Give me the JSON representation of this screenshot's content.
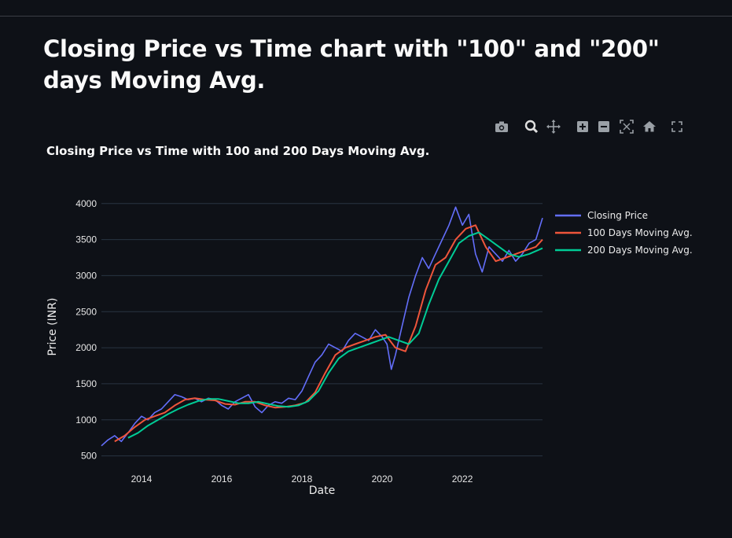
{
  "page": {
    "title": "Closing Price vs Time chart with \"100\" and \"200\" days Moving Avg."
  },
  "modebar": {
    "buttons": [
      "camera-icon",
      "zoom-icon",
      "pan-icon",
      "zoom-in-icon",
      "zoom-out-icon",
      "autoscale-icon",
      "home-icon",
      "fullscreen-icon"
    ]
  },
  "colors": {
    "background": "#0e1117",
    "closing": "#636efa",
    "ma100": "#ef553b",
    "ma200": "#00cc96",
    "grid": "#283442"
  },
  "chart_data": {
    "type": "line",
    "title": "Closing Price vs Time with 100 and 200 Days Moving Avg.",
    "xlabel": "Date",
    "ylabel": "Price (INR)",
    "xlim": [
      "2013-01-01",
      "2024-01-01"
    ],
    "ylim": [
      430,
      4150
    ],
    "x_ticks": [
      "2014",
      "2016",
      "2018",
      "2020",
      "2022"
    ],
    "y_ticks": [
      500,
      1000,
      1500,
      2000,
      2500,
      3000,
      3500,
      4000
    ],
    "grid": true,
    "legend_position": "right",
    "series": [
      {
        "name": "Closing Price",
        "x": [
          "2013-01-01",
          "2013-03-01",
          "2013-05-01",
          "2013-07-01",
          "2013-09-01",
          "2013-11-01",
          "2014-01-01",
          "2014-03-01",
          "2014-05-01",
          "2014-07-01",
          "2014-09-01",
          "2014-11-01",
          "2015-01-01",
          "2015-03-01",
          "2015-05-01",
          "2015-07-01",
          "2015-09-01",
          "2015-11-01",
          "2016-01-01",
          "2016-03-01",
          "2016-05-01",
          "2016-07-01",
          "2016-09-01",
          "2016-11-01",
          "2017-01-01",
          "2017-03-01",
          "2017-05-01",
          "2017-07-01",
          "2017-09-01",
          "2017-11-01",
          "2018-01-01",
          "2018-03-01",
          "2018-05-01",
          "2018-07-01",
          "2018-09-01",
          "2018-11-01",
          "2019-01-01",
          "2019-03-01",
          "2019-05-01",
          "2019-07-01",
          "2019-09-01",
          "2019-11-01",
          "2020-01-01",
          "2020-02-15",
          "2020-03-25",
          "2020-05-01",
          "2020-07-01",
          "2020-09-01",
          "2020-11-01",
          "2021-01-01",
          "2021-03-01",
          "2021-05-01",
          "2021-07-01",
          "2021-09-01",
          "2021-11-01",
          "2022-01-01",
          "2022-03-01",
          "2022-05-01",
          "2022-07-01",
          "2022-09-01",
          "2022-11-01",
          "2023-01-01",
          "2023-03-01",
          "2023-05-01",
          "2023-07-01",
          "2023-09-01",
          "2023-11-01",
          "2024-01-01"
        ],
        "values": [
          640,
          720,
          780,
          700,
          820,
          950,
          1050,
          1000,
          1100,
          1150,
          1250,
          1350,
          1320,
          1280,
          1300,
          1250,
          1300,
          1280,
          1200,
          1150,
          1250,
          1300,
          1350,
          1180,
          1100,
          1200,
          1250,
          1230,
          1300,
          1280,
          1400,
          1600,
          1800,
          1900,
          2050,
          2000,
          1950,
          2100,
          2200,
          2150,
          2100,
          2250,
          2150,
          2050,
          1700,
          1900,
          2300,
          2700,
          3000,
          3250,
          3100,
          3300,
          3500,
          3700,
          3950,
          3700,
          3850,
          3300,
          3050,
          3400,
          3300,
          3200,
          3350,
          3200,
          3300,
          3450,
          3500,
          3800
        ]
      },
      {
        "name": "100 Days Moving Avg.",
        "x": [
          "2013-05-01",
          "2013-08-01",
          "2013-11-01",
          "2014-02-01",
          "2014-05-01",
          "2014-08-01",
          "2014-11-01",
          "2015-02-01",
          "2015-05-01",
          "2015-08-01",
          "2015-11-01",
          "2016-02-01",
          "2016-05-01",
          "2016-08-01",
          "2016-11-01",
          "2017-02-01",
          "2017-05-01",
          "2017-08-01",
          "2017-11-01",
          "2018-02-01",
          "2018-05-01",
          "2018-08-01",
          "2018-11-01",
          "2019-02-01",
          "2019-05-01",
          "2019-08-01",
          "2019-11-01",
          "2020-02-01",
          "2020-05-01",
          "2020-08-01",
          "2020-11-01",
          "2021-02-01",
          "2021-05-01",
          "2021-08-01",
          "2021-11-01",
          "2022-02-01",
          "2022-05-01",
          "2022-08-01",
          "2022-11-01",
          "2023-02-01",
          "2023-05-01",
          "2023-08-01",
          "2023-11-01",
          "2024-01-01"
        ],
        "values": [
          700,
          780,
          900,
          1000,
          1050,
          1100,
          1200,
          1280,
          1300,
          1280,
          1270,
          1220,
          1210,
          1250,
          1250,
          1200,
          1170,
          1180,
          1200,
          1240,
          1380,
          1650,
          1900,
          2000,
          2050,
          2100,
          2150,
          2180,
          2000,
          1950,
          2300,
          2800,
          3150,
          3250,
          3500,
          3650,
          3700,
          3400,
          3200,
          3250,
          3300,
          3350,
          3400,
          3500
        ]
      },
      {
        "name": "200 Days Moving Avg.",
        "x": [
          "2013-09-01",
          "2013-12-01",
          "2014-03-01",
          "2014-06-01",
          "2014-09-01",
          "2014-12-01",
          "2015-03-01",
          "2015-06-01",
          "2015-09-01",
          "2015-12-01",
          "2016-03-01",
          "2016-06-01",
          "2016-09-01",
          "2016-12-01",
          "2017-03-01",
          "2017-06-01",
          "2017-09-01",
          "2017-12-01",
          "2018-03-01",
          "2018-06-01",
          "2018-09-01",
          "2018-12-01",
          "2019-03-01",
          "2019-06-01",
          "2019-09-01",
          "2019-12-01",
          "2020-03-01",
          "2020-06-01",
          "2020-09-01",
          "2020-12-01",
          "2021-03-01",
          "2021-06-01",
          "2021-09-01",
          "2021-12-01",
          "2022-03-01",
          "2022-06-01",
          "2022-09-01",
          "2022-12-01",
          "2023-03-01",
          "2023-06-01",
          "2023-09-01",
          "2024-01-01"
        ],
        "values": [
          750,
          820,
          920,
          1000,
          1080,
          1150,
          1210,
          1260,
          1290,
          1290,
          1260,
          1230,
          1230,
          1250,
          1220,
          1190,
          1180,
          1200,
          1260,
          1400,
          1650,
          1850,
          1950,
          2000,
          2050,
          2100,
          2150,
          2100,
          2050,
          2200,
          2600,
          2950,
          3200,
          3450,
          3550,
          3600,
          3500,
          3400,
          3300,
          3260,
          3300,
          3380
        ]
      }
    ]
  }
}
